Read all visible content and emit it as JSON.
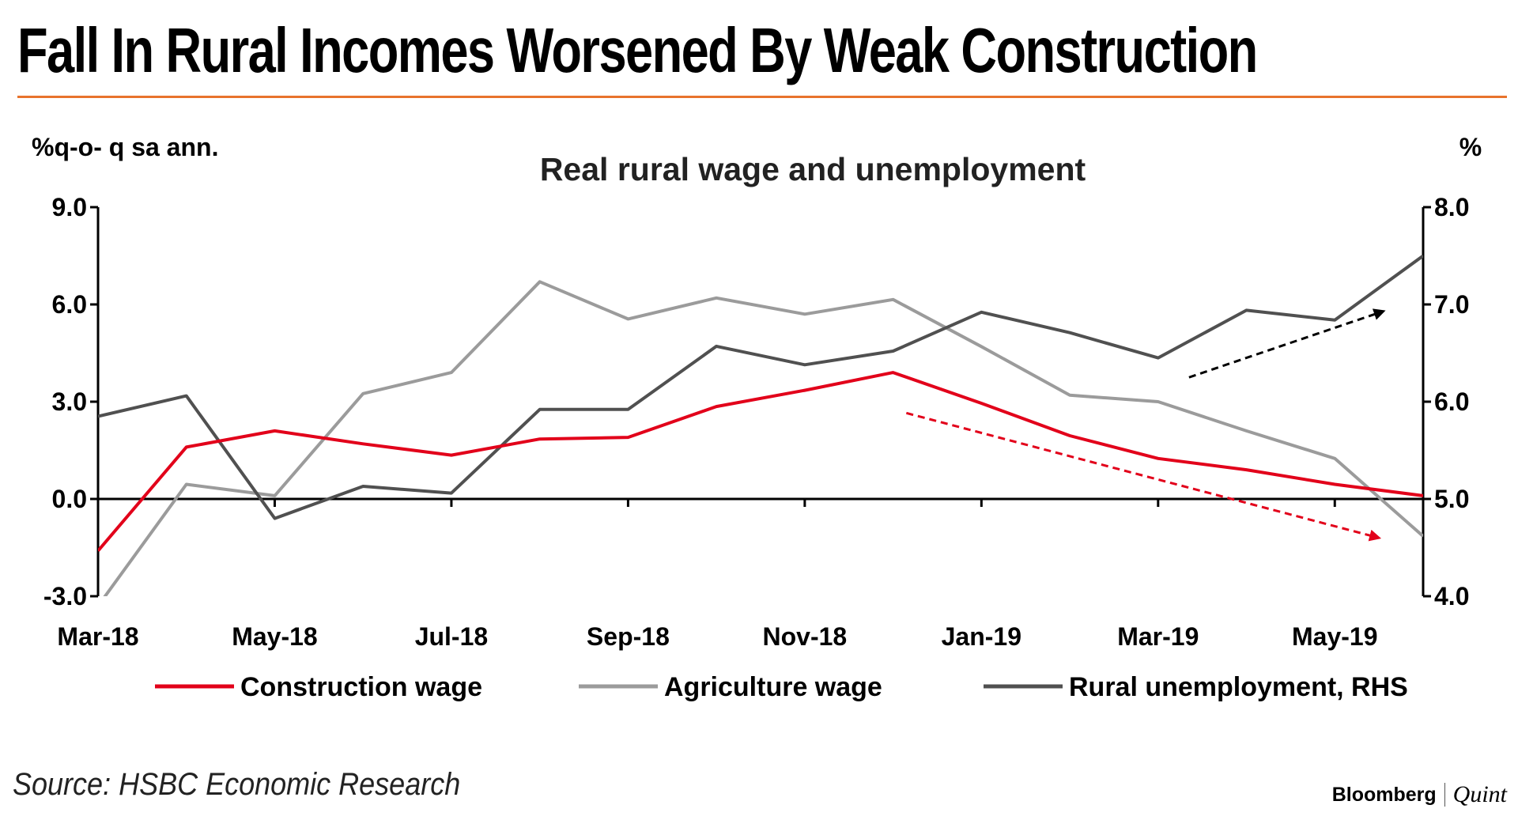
{
  "headline": "Fall In Rural Incomes Worsened By Weak Construction",
  "source": "Source: HSBC Economic Research",
  "logo": {
    "brand": "Bloomberg",
    "partner": "Quint"
  },
  "colors": {
    "construction": "#e2001a",
    "agriculture": "#9b9b9b",
    "unemployment": "#505050",
    "accent_rule": "#e8732c",
    "axis": "#000000"
  },
  "chart_data": {
    "type": "line",
    "title": "Real rural wage and unemployment",
    "ylabel": "%q-o- q sa ann.",
    "y2label": "%",
    "ylim": [
      -3.0,
      9.0
    ],
    "y2lim": [
      4.0,
      8.0
    ],
    "yticks": [
      "9.0",
      "6.0",
      "3.0",
      "0.0",
      "-3.0"
    ],
    "y2ticks": [
      "8.0",
      "7.0",
      "6.0",
      "5.0",
      "4.0"
    ],
    "x": [
      "Mar-18",
      "Apr-18",
      "May-18",
      "Jun-18",
      "Jul-18",
      "Aug-18",
      "Sep-18",
      "Oct-18",
      "Nov-18",
      "Dec-18",
      "Jan-19",
      "Feb-19",
      "Mar-19",
      "Apr-19",
      "May-19",
      "Jun-19"
    ],
    "xticklabels": [
      "Mar-18",
      "May-18",
      "Jul-18",
      "Sep-18",
      "Nov-18",
      "Jan-19",
      "Mar-19",
      "May-19"
    ],
    "grid": false,
    "legend_position": "bottom",
    "series": [
      {
        "name": "Construction wage",
        "axis": "left",
        "color_key": "construction",
        "values": [
          -1.6,
          1.6,
          2.1,
          1.7,
          1.35,
          1.85,
          1.9,
          2.85,
          3.35,
          3.9,
          2.95,
          1.95,
          1.25,
          0.9,
          0.45,
          0.1
        ]
      },
      {
        "name": "Agriculture wage",
        "axis": "left",
        "color_key": "agriculture",
        "values": [
          -3.3,
          0.45,
          0.1,
          3.25,
          3.9,
          6.7,
          5.55,
          6.2,
          5.7,
          6.15,
          4.7,
          3.2,
          3.0,
          2.1,
          1.25,
          -1.15
        ]
      },
      {
        "name": "Rural unemployment, RHS",
        "axis": "right",
        "color_key": "unemployment",
        "values": [
          5.85,
          6.06,
          4.8,
          5.13,
          5.06,
          5.92,
          5.92,
          6.57,
          6.38,
          6.52,
          6.92,
          6.71,
          6.45,
          6.94,
          6.84,
          7.5
        ]
      }
    ],
    "annotations": [
      {
        "type": "dashed-arrow",
        "color_key": "construction",
        "axis": "left",
        "from": {
          "x": 9.15,
          "y": 2.65
        },
        "to": {
          "x": 14.5,
          "y": -1.2
        }
      },
      {
        "type": "dashed-arrow",
        "color_key": "unemployment",
        "axis": "right",
        "from": {
          "x": 12.35,
          "y": 6.25
        },
        "to": {
          "x": 14.55,
          "y": 6.93
        }
      }
    ]
  }
}
